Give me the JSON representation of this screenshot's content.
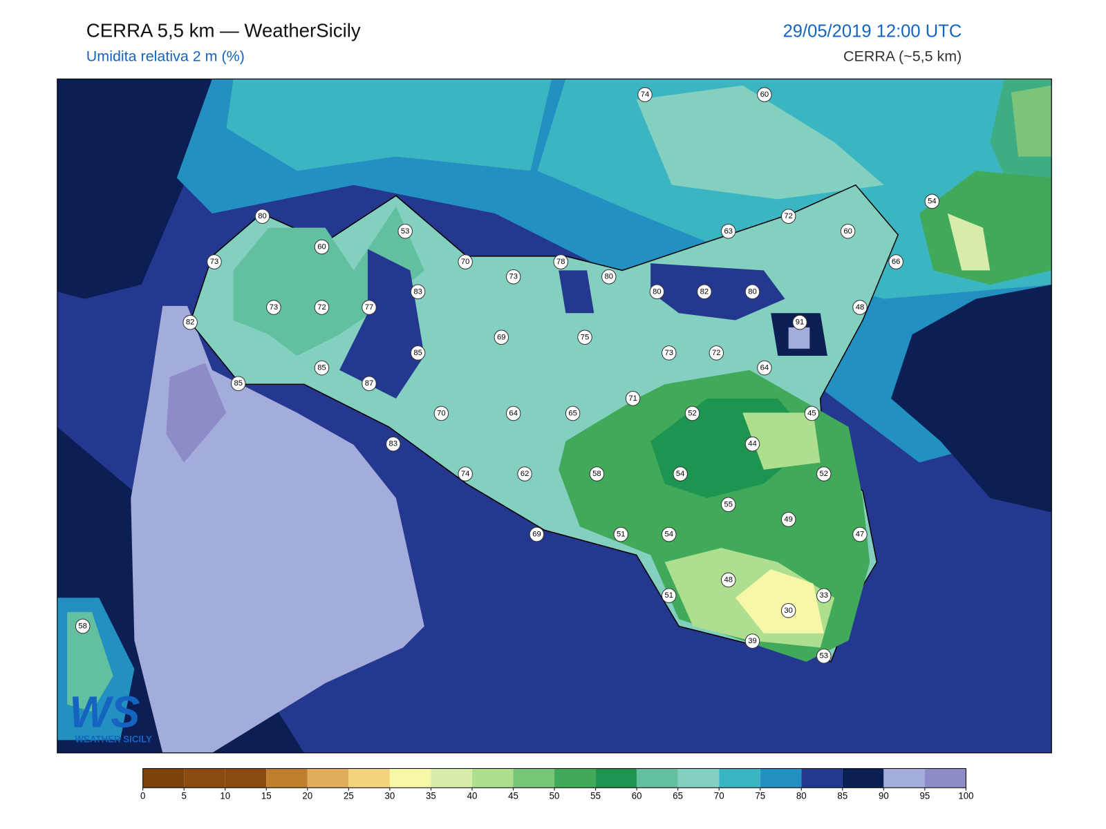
{
  "header": {
    "title": "CERRA 5,5 km — WeatherSicily",
    "subtitle": "Umidita relativa 2 m (%)",
    "datetime": "29/05/2019 12:00 UTC",
    "source": "CERRA (~5,5 km)"
  },
  "logo": {
    "mark": "WS",
    "text": "WEATHER SICILY"
  },
  "stations": [
    74,
    60,
    80,
    53,
    72,
    63,
    60,
    54,
    60,
    73,
    70,
    73,
    78,
    80,
    66,
    83,
    80,
    82,
    80,
    73,
    72,
    77,
    48,
    82,
    91,
    69,
    75,
    85,
    73,
    72,
    85,
    64,
    85,
    87,
    71,
    70,
    64,
    65,
    52,
    45,
    83,
    44,
    74,
    62,
    58,
    54,
    52,
    55,
    49,
    69,
    51,
    54,
    47,
    48,
    51,
    33,
    30,
    58,
    39,
    53
  ],
  "colorbar": {
    "ticks": [
      0,
      5,
      10,
      15,
      20,
      25,
      30,
      35,
      40,
      45,
      50,
      55,
      60,
      65,
      70,
      75,
      80,
      85,
      90,
      95,
      100
    ],
    "colors": [
      "#7b4309",
      "#8b4b0e",
      "#8b4b0e",
      "#c07f2e",
      "#e0ad5a",
      "#f2d47c",
      "#f7f7a8",
      "#d8ecaa",
      "#addf8f",
      "#78c678",
      "#41a95a",
      "#1d9550",
      "#62c0a0",
      "#84d0c0",
      "#3cb5c3",
      "#2290c0",
      "#25388f",
      "#0c1f55",
      "#a4acdb",
      "#8e8cc8"
    ]
  }
}
